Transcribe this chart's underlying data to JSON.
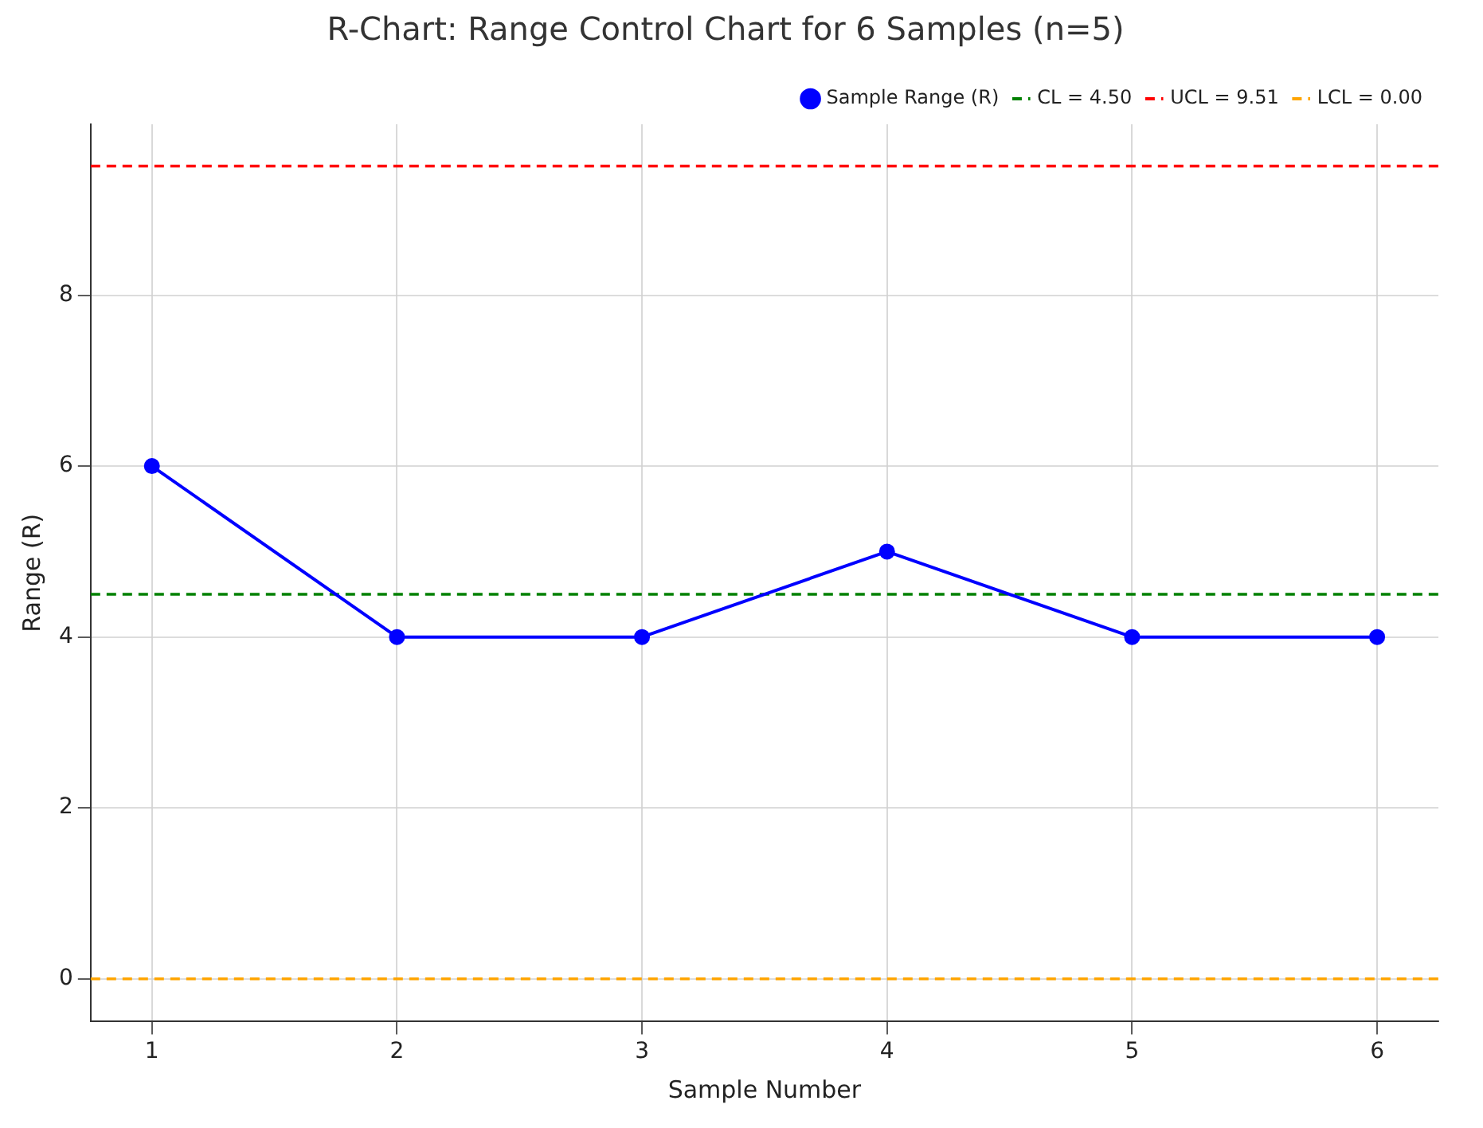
{
  "chart_data": {
    "type": "line",
    "title": "R-Chart: Range Control Chart for 6 Samples (n=5)",
    "xlabel": "Sample Number",
    "ylabel": "Range (R)",
    "x": [
      1,
      2,
      3,
      4,
      5,
      6
    ],
    "series": [
      {
        "name": "Sample Range (R)",
        "color": "#0000ff",
        "values": [
          6,
          4,
          4,
          5,
          4,
          4
        ]
      }
    ],
    "xlim": [
      0.75,
      6.25
    ],
    "xticks": [
      1,
      2,
      3,
      4,
      5,
      6
    ],
    "ylim": [
      -0.5,
      10
    ],
    "yticks": [
      0,
      2,
      4,
      6,
      8
    ],
    "ref_lines": [
      {
        "axis": "y",
        "value": 4.5,
        "label": "CL = 4.50",
        "color": "#008000",
        "line_style": "dashed"
      },
      {
        "axis": "y",
        "value": 9.51,
        "label": "UCL = 9.51",
        "color": "#ff0000",
        "line_style": "dashed"
      },
      {
        "axis": "y",
        "value": 0,
        "label": "LCL = 0.00",
        "color": "#ffa500",
        "line_style": "dashed"
      }
    ],
    "grid": true,
    "legend": "top right",
    "marker": "circle",
    "line_style": "solid"
  }
}
